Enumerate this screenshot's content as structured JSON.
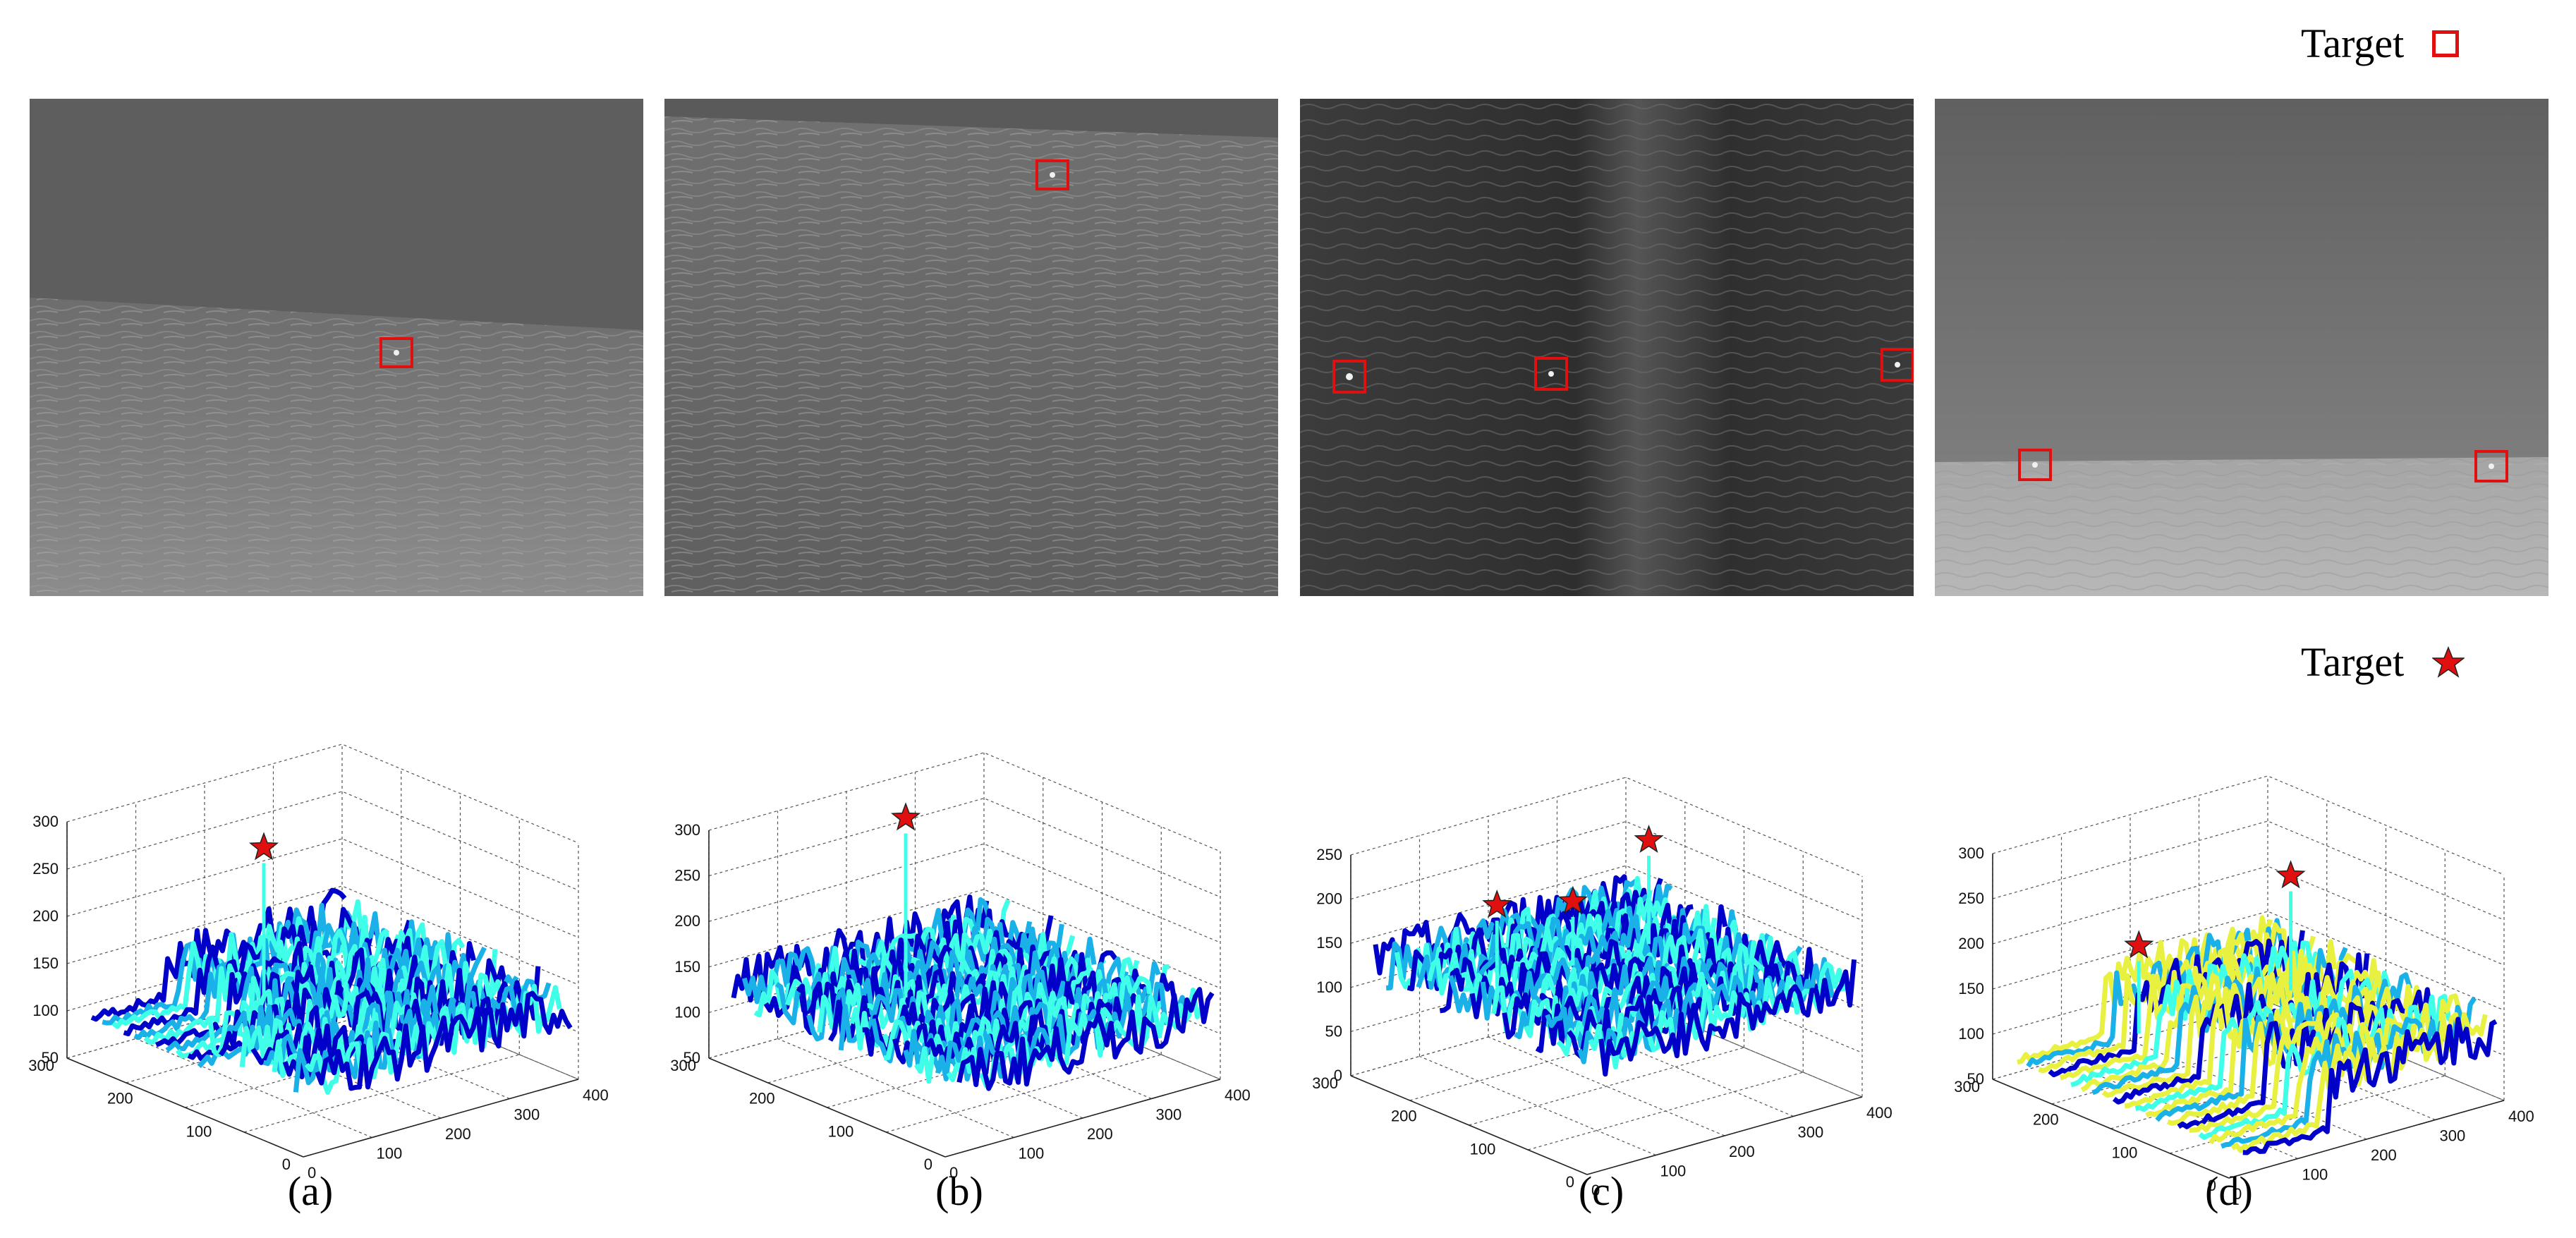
{
  "legend": {
    "top_label": "Target",
    "bottom_label": "Target",
    "box_color": "#e01010",
    "star_color": "#e01010"
  },
  "captions": [
    "(a)",
    "(b)",
    "(c)",
    "(d)"
  ],
  "surface_colors": {
    "low": "#0000c8",
    "mid": "#1ab0e8",
    "high": "#40ffe8",
    "yellow": "#e8f040"
  },
  "panels": [
    {
      "z_ticks": [
        "50",
        "100",
        "150",
        "200",
        "250",
        "300"
      ],
      "y_ticks": [
        "0",
        "100",
        "200",
        "300"
      ],
      "x_ticks": [
        "0",
        "100",
        "200",
        "300",
        "400"
      ],
      "peaks": [
        250
      ]
    },
    {
      "z_ticks": [
        "50",
        "100",
        "150",
        "200",
        "250",
        "300"
      ],
      "y_ticks": [
        "0",
        "100",
        "200",
        "300"
      ],
      "x_ticks": [
        "0",
        "100",
        "200",
        "300",
        "400"
      ],
      "peaks": [
        290
      ]
    },
    {
      "z_ticks": [
        "0",
        "50",
        "100",
        "150",
        "200",
        "250"
      ],
      "y_ticks": [
        "0",
        "100",
        "200",
        "300"
      ],
      "x_ticks": [
        "0",
        "100",
        "200",
        "300",
        "400"
      ],
      "peaks": [
        185,
        165,
        210
      ]
    },
    {
      "z_ticks": [
        "50",
        "100",
        "150",
        "200",
        "250",
        "300"
      ],
      "y_ticks": [
        "0",
        "100",
        "200",
        "300"
      ],
      "x_ticks": [
        "0",
        "100",
        "200",
        "300",
        "400"
      ],
      "peaks": [
        190,
        220
      ]
    }
  ]
}
